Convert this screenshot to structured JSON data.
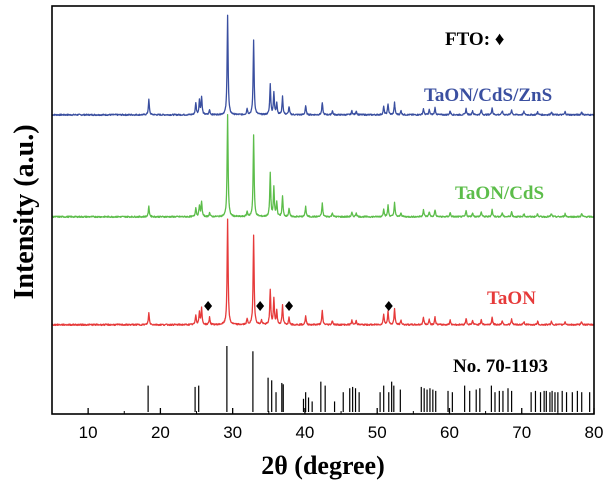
{
  "chart_data": {
    "type": "line",
    "title": "",
    "xlabel": "2θ (degree)",
    "ylabel": "Intensity (a.u.)",
    "xlim": [
      5,
      80
    ],
    "xticks": [
      10,
      20,
      30,
      40,
      50,
      60,
      70,
      80
    ],
    "grid": false,
    "colors": {
      "TaON/CdS/ZnS": "#3a4fa0",
      "TaON/CdS": "#5cbd4a",
      "TaON": "#e63a3a",
      "reference": "#000000"
    },
    "series": [
      {
        "name": "TaON/CdS/ZnS",
        "color": "#3a4fa0",
        "peaks": [
          [
            18.4,
            15
          ],
          [
            24.9,
            12
          ],
          [
            25.4,
            14
          ],
          [
            25.7,
            18
          ],
          [
            26.8,
            5
          ],
          [
            29.3,
            100
          ],
          [
            32.0,
            6
          ],
          [
            32.9,
            74
          ],
          [
            35.2,
            30
          ],
          [
            35.7,
            22
          ],
          [
            36.1,
            12
          ],
          [
            36.9,
            18
          ],
          [
            37.8,
            8
          ],
          [
            40.1,
            9
          ],
          [
            42.4,
            12
          ],
          [
            43.8,
            4
          ],
          [
            46.5,
            4
          ],
          [
            47.1,
            4
          ],
          [
            50.9,
            8
          ],
          [
            51.5,
            11
          ],
          [
            52.4,
            12
          ],
          [
            53.3,
            4
          ],
          [
            56.4,
            6
          ],
          [
            57.2,
            5
          ],
          [
            58.0,
            7
          ],
          [
            60.1,
            4
          ],
          [
            62.3,
            6
          ],
          [
            63.2,
            4
          ],
          [
            64.4,
            5
          ],
          [
            65.9,
            7
          ],
          [
            67.3,
            4
          ],
          [
            68.6,
            5
          ],
          [
            70.3,
            3
          ],
          [
            72.2,
            3
          ],
          [
            74.1,
            3
          ],
          [
            76.0,
            3
          ],
          [
            78.3,
            3
          ]
        ]
      },
      {
        "name": "TaON/CdS",
        "color": "#5cbd4a",
        "peaks": [
          [
            18.4,
            10
          ],
          [
            24.9,
            9
          ],
          [
            25.4,
            11
          ],
          [
            25.7,
            15
          ],
          [
            26.8,
            4
          ],
          [
            29.3,
            100
          ],
          [
            32.0,
            5
          ],
          [
            32.9,
            80
          ],
          [
            35.2,
            42
          ],
          [
            35.7,
            28
          ],
          [
            36.1,
            14
          ],
          [
            36.9,
            20
          ],
          [
            37.8,
            8
          ],
          [
            40.1,
            10
          ],
          [
            42.4,
            13
          ],
          [
            43.8,
            4
          ],
          [
            46.5,
            4
          ],
          [
            47.1,
            4
          ],
          [
            50.9,
            8
          ],
          [
            51.5,
            11
          ],
          [
            52.4,
            14
          ],
          [
            53.3,
            4
          ],
          [
            56.4,
            7
          ],
          [
            57.2,
            5
          ],
          [
            58.0,
            7
          ],
          [
            60.1,
            4
          ],
          [
            62.3,
            6
          ],
          [
            63.2,
            4
          ],
          [
            64.4,
            5
          ],
          [
            65.9,
            7
          ],
          [
            67.3,
            4
          ],
          [
            68.6,
            5
          ],
          [
            70.3,
            3
          ],
          [
            72.2,
            3
          ],
          [
            74.1,
            3
          ],
          [
            76.0,
            3
          ],
          [
            78.3,
            3
          ]
        ]
      },
      {
        "name": "TaON",
        "color": "#e63a3a",
        "peaks": [
          [
            18.4,
            11
          ],
          [
            24.9,
            9
          ],
          [
            25.4,
            12
          ],
          [
            25.7,
            15
          ],
          [
            26.8,
            7
          ],
          [
            29.3,
            100
          ],
          [
            32.0,
            5
          ],
          [
            32.9,
            85
          ],
          [
            34.0,
            4
          ],
          [
            35.2,
            33
          ],
          [
            35.7,
            25
          ],
          [
            36.1,
            13
          ],
          [
            36.9,
            18
          ],
          [
            37.8,
            7
          ],
          [
            40.1,
            8
          ],
          [
            42.4,
            13
          ],
          [
            43.8,
            4
          ],
          [
            46.5,
            4
          ],
          [
            47.1,
            4
          ],
          [
            50.9,
            10
          ],
          [
            51.5,
            13
          ],
          [
            52.4,
            15
          ],
          [
            53.3,
            4
          ],
          [
            56.4,
            7
          ],
          [
            57.2,
            5
          ],
          [
            58.0,
            7
          ],
          [
            60.1,
            4
          ],
          [
            62.3,
            6
          ],
          [
            63.2,
            4
          ],
          [
            64.4,
            5
          ],
          [
            65.9,
            7
          ],
          [
            67.3,
            4
          ],
          [
            68.6,
            5
          ],
          [
            70.3,
            3
          ],
          [
            72.2,
            3
          ],
          [
            74.1,
            3
          ],
          [
            76.0,
            3
          ],
          [
            78.3,
            3
          ]
        ]
      }
    ],
    "fto_markers": [
      26.6,
      33.8,
      37.8,
      51.6
    ],
    "reference": {
      "label": "No. 70-1193",
      "lines": [
        [
          18.3,
          40
        ],
        [
          24.8,
          38
        ],
        [
          25.3,
          40
        ],
        [
          29.2,
          100
        ],
        [
          32.8,
          92
        ],
        [
          34.9,
          52
        ],
        [
          35.4,
          48
        ],
        [
          36.0,
          30
        ],
        [
          36.8,
          44
        ],
        [
          37.0,
          42
        ],
        [
          39.8,
          20
        ],
        [
          40.1,
          30
        ],
        [
          40.5,
          22
        ],
        [
          41.0,
          16
        ],
        [
          42.2,
          46
        ],
        [
          42.8,
          40
        ],
        [
          44.1,
          16
        ],
        [
          45.3,
          30
        ],
        [
          46.2,
          36
        ],
        [
          46.6,
          38
        ],
        [
          47.0,
          36
        ],
        [
          47.5,
          30
        ],
        [
          50.4,
          30
        ],
        [
          50.9,
          40
        ],
        [
          51.6,
          30
        ],
        [
          52.0,
          46
        ],
        [
          52.3,
          40
        ],
        [
          53.2,
          34
        ],
        [
          56.1,
          38
        ],
        [
          56.5,
          36
        ],
        [
          56.9,
          34
        ],
        [
          57.3,
          36
        ],
        [
          57.7,
          34
        ],
        [
          58.1,
          32
        ],
        [
          59.8,
          32
        ],
        [
          60.4,
          30
        ],
        [
          62.1,
          40
        ],
        [
          62.8,
          32
        ],
        [
          63.7,
          34
        ],
        [
          64.2,
          36
        ],
        [
          65.8,
          40
        ],
        [
          66.3,
          30
        ],
        [
          66.9,
          32
        ],
        [
          67.4,
          32
        ],
        [
          68.1,
          36
        ],
        [
          68.6,
          32
        ],
        [
          71.3,
          30
        ],
        [
          71.9,
          32
        ],
        [
          72.6,
          30
        ],
        [
          73.1,
          32
        ],
        [
          73.4,
          32
        ],
        [
          73.9,
          30
        ],
        [
          74.2,
          32
        ],
        [
          74.6,
          30
        ],
        [
          75.0,
          30
        ],
        [
          75.6,
          32
        ],
        [
          76.2,
          30
        ],
        [
          77.0,
          30
        ],
        [
          77.7,
          32
        ],
        [
          78.3,
          30
        ],
        [
          79.4,
          30
        ]
      ]
    },
    "marker_legend": "FTO: ♦"
  }
}
